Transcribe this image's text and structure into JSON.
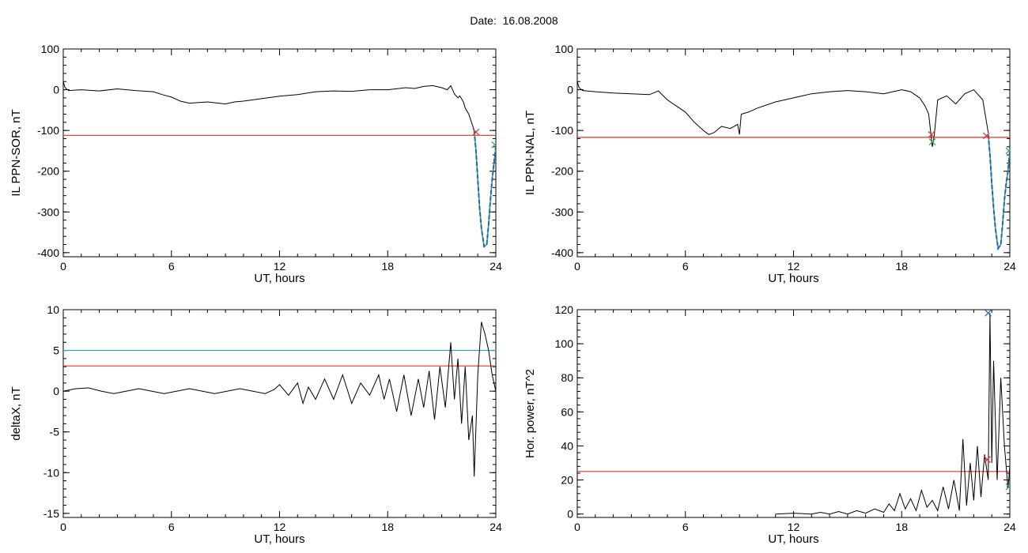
{
  "header": {
    "title": "Date:  16.08.2008"
  },
  "colors": {
    "trace": "#000000",
    "red_line": "#e0302a",
    "blue_line": "#2a9fc9",
    "dip_fit": "#1f5fd0",
    "green_marker": "#2aa84a"
  },
  "chart_data": [
    {
      "id": "sor",
      "type": "line",
      "xlabel": "UT, hours",
      "ylabel": "IL PPN-SOR, nT",
      "xlim": [
        0,
        24
      ],
      "ylim": [
        -410,
        100
      ],
      "xticks": [
        0,
        6,
        12,
        18,
        24
      ],
      "yticks": [
        100,
        0,
        -100,
        -200,
        -300,
        -400
      ],
      "series": [
        {
          "color": "#000000",
          "x": [
            0,
            0.1,
            0.3,
            1,
            2,
            3,
            4,
            5,
            5.5,
            6,
            6.5,
            7,
            8,
            9,
            9.5,
            10,
            11,
            12,
            13,
            14,
            15,
            16,
            17,
            18,
            19,
            19.5,
            20,
            20.5,
            21,
            21.3,
            21.5,
            21.7,
            21.9,
            22.0,
            22.2,
            22.3,
            22.5,
            22.8
          ],
          "y": [
            20,
            5,
            -2,
            0,
            -3,
            2,
            -2,
            -5,
            -12,
            -18,
            -28,
            -33,
            -30,
            -35,
            -30,
            -28,
            -22,
            -16,
            -12,
            -5,
            -3,
            -4,
            0,
            0,
            5,
            3,
            8,
            10,
            5,
            0,
            10,
            -10,
            -20,
            -15,
            -30,
            -45,
            -60,
            -100
          ]
        }
      ],
      "hlines": [
        {
          "y": -112,
          "color": "#e0302a"
        }
      ],
      "dip_fit": {
        "color": "#1f5fd0",
        "x": [
          22.8,
          22.9,
          23.0,
          23.1,
          23.2,
          23.35,
          23.5,
          23.6,
          23.7,
          23.8,
          23.9,
          24.0
        ],
        "y": [
          -100,
          -150,
          -220,
          -290,
          -340,
          -385,
          -380,
          -330,
          -270,
          -220,
          -180,
          -140
        ]
      },
      "markers": [
        {
          "x": 22.9,
          "y": -104,
          "color": "#e0302a"
        },
        {
          "x": 23.95,
          "y": -135,
          "color": "#2aa84a"
        }
      ]
    },
    {
      "id": "nal",
      "type": "line",
      "xlabel": "UT, hours",
      "ylabel": "IL PPN-NAL, nT",
      "xlim": [
        0,
        24
      ],
      "ylim": [
        -410,
        100
      ],
      "xticks": [
        0,
        6,
        12,
        18,
        24
      ],
      "yticks": [
        100,
        0,
        -100,
        -200,
        -300,
        -400
      ],
      "series": [
        {
          "color": "#000000",
          "x": [
            0,
            0.1,
            0.3,
            1,
            2,
            3,
            4,
            4.5,
            5,
            5.5,
            6,
            6.5,
            7,
            7.3,
            7.6,
            8,
            8.5,
            8.9,
            9.0,
            9.1,
            9.5,
            10,
            11,
            12,
            13,
            14,
            15,
            16,
            17,
            17.5,
            18,
            18.5,
            19,
            19.3,
            19.5,
            19.6,
            19.7,
            19.8,
            20,
            20.5,
            21,
            21.5,
            22,
            22.5,
            22.8
          ],
          "y": [
            20,
            5,
            -2,
            -5,
            -8,
            -10,
            -12,
            -3,
            -25,
            -40,
            -55,
            -80,
            -100,
            -110,
            -105,
            -90,
            -95,
            -85,
            -110,
            -60,
            -55,
            -45,
            -30,
            -20,
            -10,
            -5,
            -2,
            -5,
            -10,
            -5,
            0,
            -5,
            -20,
            -40,
            -60,
            -100,
            -140,
            -115,
            -25,
            -15,
            -35,
            -10,
            0,
            -25,
            -105
          ]
        }
      ],
      "hlines": [
        {
          "y": -117,
          "color": "#e0302a"
        }
      ],
      "dip_fit": {
        "color": "#1f5fd0",
        "x": [
          22.8,
          22.9,
          23.0,
          23.1,
          23.2,
          23.35,
          23.5,
          23.6,
          23.7,
          23.8,
          23.9,
          24.0
        ],
        "y": [
          -110,
          -160,
          -230,
          -290,
          -340,
          -390,
          -380,
          -330,
          -270,
          -230,
          -200,
          -150
        ]
      },
      "markers": [
        {
          "x": 19.65,
          "y": -110,
          "color": "#e0302a"
        },
        {
          "x": 22.7,
          "y": -113,
          "color": "#e0302a"
        },
        {
          "x": 19.7,
          "y": -128,
          "color": "#2aa84a"
        },
        {
          "x": 23.95,
          "y": -150,
          "color": "#2aa84a"
        }
      ]
    },
    {
      "id": "deltax",
      "type": "line",
      "xlabel": "UT, hours",
      "ylabel": "deltaX, nT",
      "xlim": [
        0,
        24
      ],
      "ylim": [
        -15.5,
        10
      ],
      "xticks": [
        0,
        6,
        12,
        18,
        24
      ],
      "yticks": [
        10,
        5,
        0,
        -5,
        -10,
        -15
      ],
      "series": [
        {
          "color": "#000000",
          "x": [
            0,
            0.7,
            1.4,
            2.1,
            2.8,
            3.5,
            4.2,
            4.9,
            5.6,
            6.3,
            7.0,
            7.7,
            8.4,
            9.1,
            9.8,
            10.5,
            11.2,
            11.7,
            12.0,
            12.5,
            13.0,
            13.3,
            13.6,
            14.0,
            14.5,
            15.0,
            15.5,
            16.0,
            16.5,
            17.0,
            17.5,
            17.8,
            18.1,
            18.5,
            18.9,
            19.3,
            19.7,
            20.0,
            20.3,
            20.6,
            20.9,
            21.2,
            21.5,
            21.7,
            21.9,
            22.1,
            22.3,
            22.5,
            22.7,
            22.8,
            23.0,
            23.2,
            23.4,
            23.6,
            23.8,
            24.0
          ],
          "y": [
            0,
            0.3,
            0.4,
            0,
            -0.3,
            0,
            0.3,
            0,
            -0.3,
            0,
            0.3,
            0,
            -0.3,
            0,
            0.3,
            0,
            -0.3,
            0.2,
            0.8,
            -0.5,
            1,
            -1.5,
            0.5,
            -1,
            1.5,
            -1,
            2,
            -1.5,
            1,
            -0.5,
            2,
            -1,
            1.5,
            -2.5,
            2,
            -3,
            1.5,
            -2,
            2.5,
            -3.5,
            3,
            -2,
            6,
            -1,
            4,
            -4,
            3,
            -6,
            -3,
            -10.5,
            2,
            8.5,
            7,
            5,
            2,
            0
          ]
        }
      ],
      "hlines": [
        {
          "y": 5,
          "color": "#2a9fc9"
        },
        {
          "y": 3.1,
          "color": "#e0302a"
        }
      ],
      "markers": []
    },
    {
      "id": "power",
      "type": "line",
      "xlabel": "UT, hours",
      "ylabel": "Hor. power, nT^2",
      "xlim": [
        0,
        24
      ],
      "ylim": [
        -2,
        120
      ],
      "xticks": [
        0,
        6,
        12,
        18,
        24
      ],
      "yticks": [
        120,
        100,
        80,
        60,
        40,
        20,
        0
      ],
      "series": [
        {
          "color": "#000000",
          "x": [
            11.0,
            12.0,
            13.0,
            13.5,
            14.0,
            14.5,
            15.0,
            15.5,
            16.0,
            16.5,
            17.0,
            17.3,
            17.6,
            17.9,
            18.2,
            18.5,
            18.8,
            19.1,
            19.4,
            19.7,
            20.0,
            20.3,
            20.6,
            20.9,
            21.2,
            21.4,
            21.6,
            21.8,
            22.0,
            22.2,
            22.4,
            22.6,
            22.8,
            22.9,
            23.0,
            23.1,
            23.3,
            23.5,
            23.7,
            23.9,
            24.0
          ],
          "y": [
            0,
            0.5,
            0,
            1,
            0,
            1.5,
            0,
            2,
            0.5,
            3,
            1,
            6,
            2,
            12,
            3,
            9,
            2,
            14,
            4,
            8,
            2,
            16,
            3,
            20,
            2,
            44,
            5,
            30,
            8,
            40,
            10,
            35,
            20,
            118,
            30,
            90,
            20,
            80,
            40,
            15,
            28
          ]
        }
      ],
      "hlines": [
        {
          "y": 25,
          "color": "#e0302a"
        }
      ],
      "markers": [
        {
          "x": 22.75,
          "y": 32,
          "color": "#e0302a"
        },
        {
          "x": 22.8,
          "y": 118,
          "color": "#2a62c9"
        },
        {
          "x": 23.95,
          "y": 16,
          "color": "#2aa84a"
        }
      ]
    }
  ]
}
